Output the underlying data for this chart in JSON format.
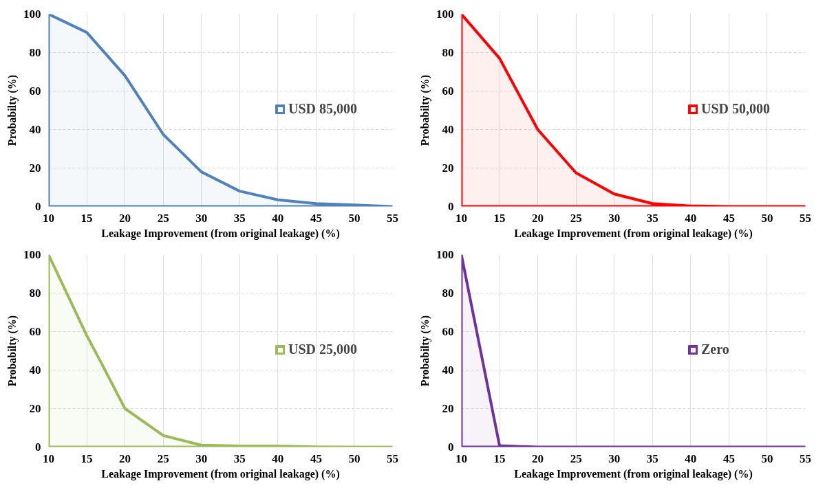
{
  "chart_data": [
    {
      "type": "area",
      "xlabel": "Leakage Improvement (from original leakage) (%)",
      "ylabel": "Probabilty (%)",
      "xlim": [
        10,
        55
      ],
      "ylim": [
        0,
        100
      ],
      "xticks": [
        10,
        15,
        20,
        25,
        30,
        35,
        40,
        45,
        50,
        55
      ],
      "yticks": [
        0,
        20,
        40,
        60,
        80,
        100
      ],
      "grid": true,
      "legend": "right",
      "series": [
        {
          "name": "USD 85,000",
          "color": "#4f81bd",
          "x": [
            10,
            15,
            20,
            25,
            30,
            35,
            40,
            45,
            50,
            55
          ],
          "values": [
            100,
            90.5,
            68,
            37.5,
            18,
            8,
            3.5,
            1.5,
            0.8,
            0
          ]
        }
      ]
    },
    {
      "type": "area",
      "xlabel": "Leakage Improvement (from original leakage) (%)",
      "ylabel": "Probabilty (%)",
      "xlim": [
        10,
        55
      ],
      "ylim": [
        0,
        100
      ],
      "xticks": [
        10,
        15,
        20,
        25,
        30,
        35,
        40,
        45,
        50,
        55
      ],
      "yticks": [
        0,
        20,
        40,
        60,
        80,
        100
      ],
      "grid": true,
      "legend": "right",
      "series": [
        {
          "name": "USD 50,000",
          "color": "#ff0000",
          "x": [
            10,
            15,
            20,
            25,
            30,
            35,
            40,
            45,
            50,
            55
          ],
          "values": [
            100,
            77,
            40,
            17.5,
            6.5,
            1.5,
            0.3,
            0,
            0,
            0
          ]
        }
      ]
    },
    {
      "type": "area",
      "xlabel": "Leakage Improvement (from original leakage) (%)",
      "ylabel": "Probabilty (%)",
      "xlim": [
        10,
        55
      ],
      "ylim": [
        0,
        100
      ],
      "xticks": [
        10,
        15,
        20,
        25,
        30,
        35,
        40,
        45,
        50,
        55
      ],
      "yticks": [
        0,
        20,
        40,
        60,
        80,
        100
      ],
      "grid": true,
      "legend": "right",
      "series": [
        {
          "name": "USD 25,000",
          "color": "#9bbb59",
          "x": [
            10,
            15,
            17,
            20,
            25,
            30,
            35,
            40,
            45,
            50,
            55
          ],
          "values": [
            100,
            58,
            43,
            20,
            6,
            1,
            0.5,
            0.5,
            0.1,
            0,
            0
          ]
        }
      ]
    },
    {
      "type": "area",
      "xlabel": "Leakage Improvement (from original leakage) (%)",
      "ylabel": "Probabilty (%)",
      "xlim": [
        10,
        55
      ],
      "ylim": [
        0,
        100
      ],
      "xticks": [
        10,
        15,
        20,
        25,
        30,
        35,
        40,
        45,
        50,
        55
      ],
      "yticks": [
        0,
        20,
        40,
        60,
        80,
        100
      ],
      "grid": true,
      "legend": "right",
      "series": [
        {
          "name": "Zero",
          "color": "#7030a0",
          "x": [
            10,
            15,
            20,
            25,
            30,
            35,
            40,
            45,
            50,
            55
          ],
          "values": [
            100,
            0.7,
            0,
            0,
            0,
            0,
            0,
            0,
            0,
            0
          ]
        }
      ]
    }
  ]
}
